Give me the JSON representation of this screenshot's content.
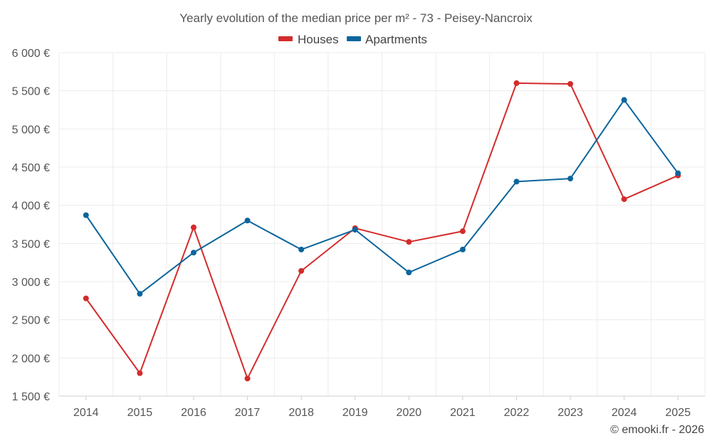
{
  "chart_data": {
    "type": "line",
    "title": "Yearly evolution of the median price per m² - 73 - Peisey-Nancroix",
    "categories": [
      "2014",
      "2015",
      "2016",
      "2017",
      "2018",
      "2019",
      "2020",
      "2021",
      "2022",
      "2023",
      "2024",
      "2025"
    ],
    "series": [
      {
        "name": "Houses",
        "color": "#d42b2b",
        "values": [
          2780,
          1800,
          3710,
          1730,
          3140,
          3700,
          3520,
          3660,
          5600,
          5590,
          4080,
          4390
        ]
      },
      {
        "name": "Apartments",
        "color": "#0b659c",
        "values": [
          3870,
          2840,
          3380,
          3800,
          3420,
          3680,
          3120,
          3420,
          4310,
          4350,
          5380,
          4420
        ]
      }
    ],
    "ylim": [
      1500,
      6000
    ],
    "yticks": [
      1500,
      2000,
      2500,
      3000,
      3500,
      4000,
      4500,
      5000,
      5500,
      6000
    ],
    "ytick_labels": [
      "1 500 €",
      "2 000 €",
      "2 500 €",
      "3 000 €",
      "3 500 €",
      "4 000 €",
      "4 500 €",
      "5 000 €",
      "5 500 €",
      "6 000 €"
    ],
    "xlabel": "",
    "ylabel": "",
    "legend_position": "top-center",
    "grid": true
  },
  "credit": "© emooki.fr - 2026"
}
